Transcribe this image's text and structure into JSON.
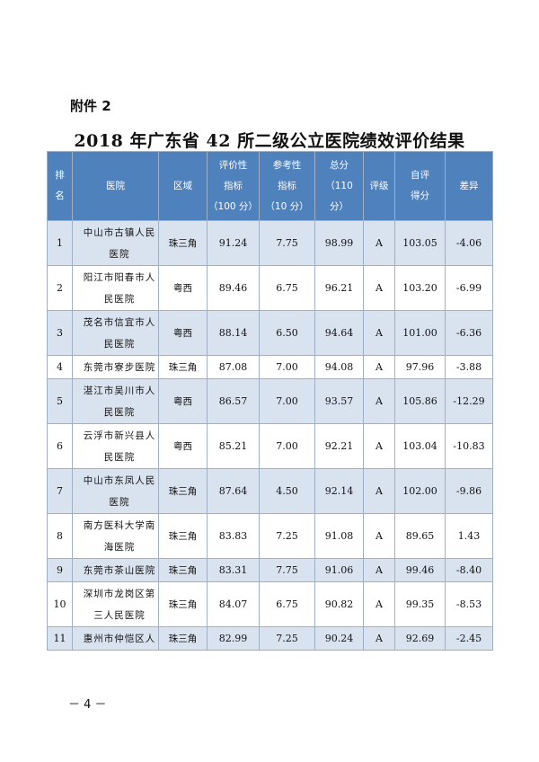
{
  "attachment_label": "附件 2",
  "title": "2018 年广东省 42 所二级公立医院绩效评价结果",
  "headers": {
    "rank": [
      "排",
      "名"
    ],
    "hospital": "医院",
    "region": "区域",
    "eval_index": [
      "评价性",
      "指标",
      "（100 分）"
    ],
    "ref_index": [
      "参考性",
      "指标",
      "（10 分）"
    ],
    "total": [
      "总分",
      "（110",
      "分）"
    ],
    "grade": "评级",
    "self_eval": [
      "自评",
      "得分"
    ],
    "diff": "差异"
  },
  "rows": [
    {
      "rank": "1",
      "hospital": [
        "中山市古镇人民",
        "医院"
      ],
      "region": "珠三角",
      "eval": "91.24",
      "ref": "7.75",
      "total": "98.99",
      "grade": "A",
      "self": "103.05",
      "diff": "-4.06"
    },
    {
      "rank": "2",
      "hospital": [
        "阳江市阳春市人",
        "民医院"
      ],
      "region": "粤西",
      "eval": "89.46",
      "ref": "6.75",
      "total": "96.21",
      "grade": "A",
      "self": "103.20",
      "diff": "-6.99"
    },
    {
      "rank": "3",
      "hospital": [
        "茂名市信宜市人",
        "民医院"
      ],
      "region": "粤西",
      "eval": "88.14",
      "ref": "6.50",
      "total": "94.64",
      "grade": "A",
      "self": "101.00",
      "diff": "-6.36"
    },
    {
      "rank": "4",
      "hospital": [
        "东莞市寮步医院"
      ],
      "region": "珠三角",
      "eval": "87.08",
      "ref": "7.00",
      "total": "94.08",
      "grade": "A",
      "self": "97.96",
      "diff": "-3.88"
    },
    {
      "rank": "5",
      "hospital": [
        "湛江市吴川市人",
        "民医院"
      ],
      "region": "粤西",
      "eval": "86.57",
      "ref": "7.00",
      "total": "93.57",
      "grade": "A",
      "self": "105.86",
      "diff": "-12.29"
    },
    {
      "rank": "6",
      "hospital": [
        "云浮市新兴县人",
        "民医院"
      ],
      "region": "粤西",
      "eval": "85.21",
      "ref": "7.00",
      "total": "92.21",
      "grade": "A",
      "self": "103.04",
      "diff": "-10.83"
    },
    {
      "rank": "7",
      "hospital": [
        "中山市东凤人民",
        "医院"
      ],
      "region": "珠三角",
      "eval": "87.64",
      "ref": "4.50",
      "total": "92.14",
      "grade": "A",
      "self": "102.00",
      "diff": "-9.86"
    },
    {
      "rank": "8",
      "hospital": [
        "南方医科大学南",
        "海医院"
      ],
      "region": "珠三角",
      "eval": "83.83",
      "ref": "7.25",
      "total": "91.08",
      "grade": "A",
      "self": "89.65",
      "diff": "1.43"
    },
    {
      "rank": "9",
      "hospital": [
        "东莞市茶山医院"
      ],
      "region": "珠三角",
      "eval": "83.31",
      "ref": "7.75",
      "total": "91.06",
      "grade": "A",
      "self": "99.46",
      "diff": "-8.40"
    },
    {
      "rank": "10",
      "hospital": [
        "深圳市龙岗区第",
        "三人民医院"
      ],
      "region": "珠三角",
      "eval": "84.07",
      "ref": "6.75",
      "total": "90.82",
      "grade": "A",
      "self": "99.35",
      "diff": "-8.53"
    },
    {
      "rank": "11",
      "hospital": [
        "惠州市仲恺区人"
      ],
      "region": "珠三角",
      "eval": "82.99",
      "ref": "7.25",
      "total": "90.24",
      "grade": "A",
      "self": "92.69",
      "diff": "-2.45"
    }
  ],
  "page_number": "－ 4 －",
  "colors": {
    "header_bg": "#4f81bd",
    "band_bg": "#d9e2ef",
    "border": "#9fb0c6"
  }
}
